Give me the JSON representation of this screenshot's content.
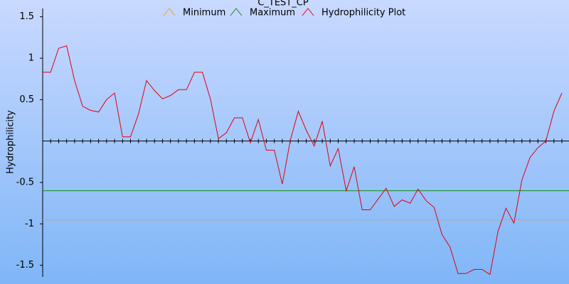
{
  "chart_data": {
    "type": "line",
    "title": "C_TEST_CP",
    "y_label": "Hydrophilicity",
    "categories": [
      null,
      null,
      null,
      null,
      null,
      null,
      null,
      null,
      null,
      null,
      null,
      null,
      null,
      null,
      null,
      null,
      null,
      null,
      null,
      null,
      null,
      null,
      null,
      null,
      null,
      null,
      null,
      null,
      null,
      null,
      null,
      null,
      null,
      null,
      null,
      null,
      null,
      null,
      null,
      null,
      null,
      null,
      null,
      null,
      null,
      null,
      null,
      null,
      null,
      null,
      null,
      null,
      null,
      null,
      null,
      null,
      null,
      null,
      null,
      null,
      null,
      null,
      null,
      null,
      null,
      null
    ],
    "ylim": [
      -1.64,
      1.6
    ],
    "yticks": [
      1.5,
      1,
      0.5,
      -0.5,
      -1,
      -1.5
    ],
    "reference_lines": [
      {
        "name": "Minimum",
        "color": "#f0a030",
        "value": -0.95
      },
      {
        "name": "Maximum",
        "color": "#138a13",
        "value": -0.6
      }
    ],
    "series": [
      {
        "name": "Hydrophilicity Plot",
        "color": "#e00010",
        "values": [
          0.83,
          0.83,
          1.12,
          1.15,
          0.73,
          0.42,
          0.37,
          0.35,
          0.5,
          0.58,
          0.05,
          0.05,
          0.33,
          0.73,
          0.61,
          0.51,
          0.55,
          0.62,
          0.62,
          0.83,
          0.83,
          0.51,
          0.03,
          0.1,
          0.28,
          0.28,
          -0.02,
          0.26,
          -0.11,
          -0.11,
          -0.52,
          0.01,
          0.36,
          0.13,
          -0.06,
          0.24,
          -0.3,
          -0.09,
          -0.6,
          -0.31,
          -0.83,
          -0.83,
          -0.7,
          -0.57,
          -0.79,
          -0.71,
          -0.75,
          -0.58,
          -0.72,
          -0.8,
          -1.13,
          -1.28,
          -1.6,
          -1.6,
          -1.55,
          -1.55,
          -1.61,
          -1.09,
          -0.81,
          -0.99,
          -0.47,
          -0.2,
          -0.08,
          0.0,
          0.36,
          0.58
        ]
      }
    ]
  }
}
